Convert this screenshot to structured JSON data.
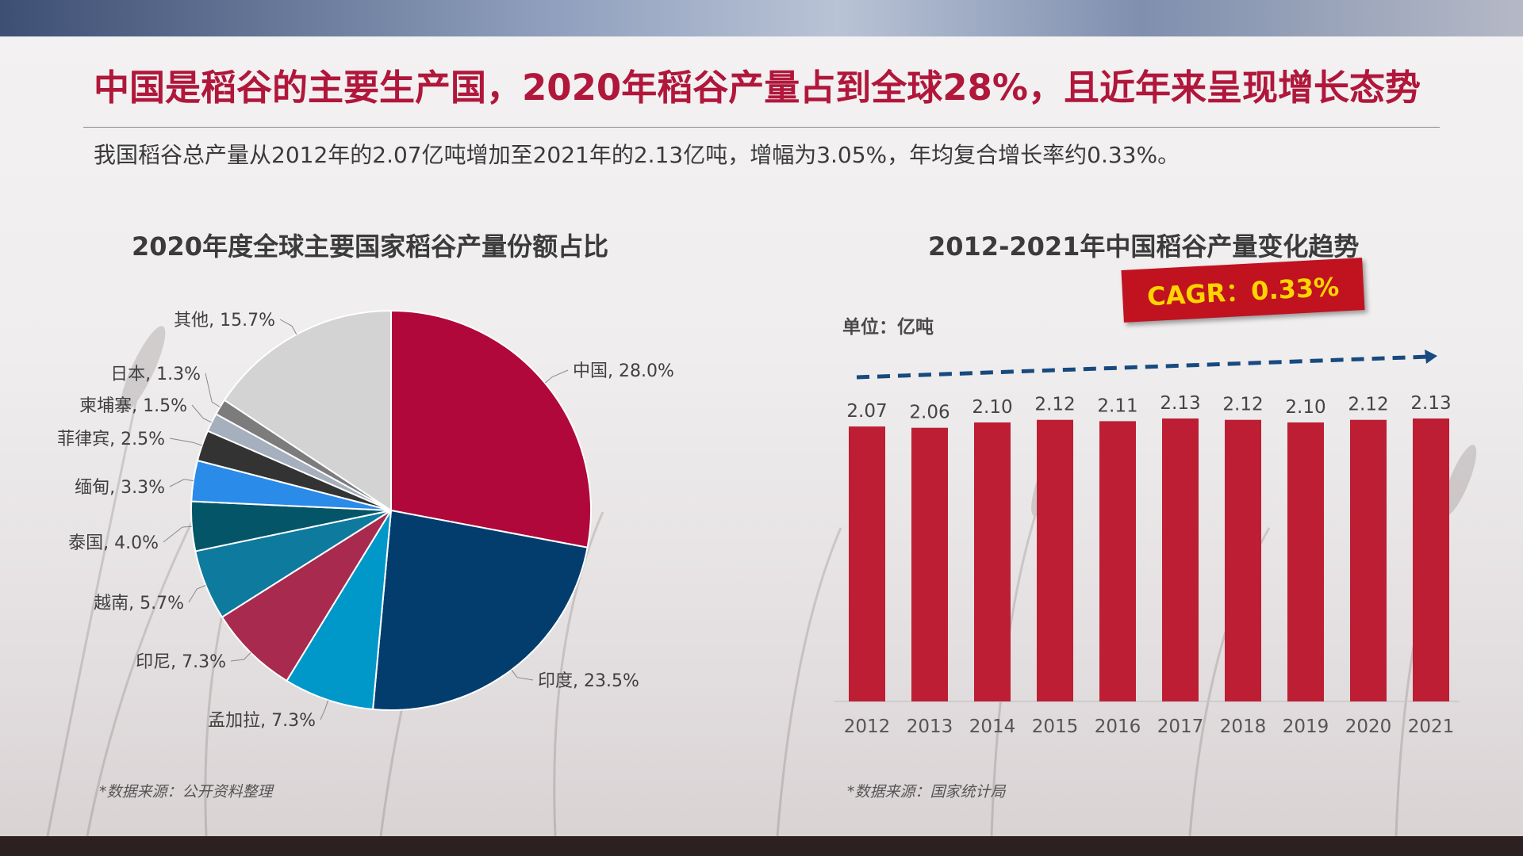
{
  "headline": "中国是稻谷的主要生产国，2020年稻谷产量占到全球28%，且近年来呈现增长态势",
  "subtext": "我国稻谷总产量从2012年的2.07亿吨增加至2021年的2.13亿吨，增幅为3.05%，年均复合增长率约0.33%。",
  "pie_title": "2020年度全球主要国家稻谷产量份额占比",
  "bar_title": "2012-2021年中国稻谷产量变化趋势",
  "unit_label": "单位：亿吨",
  "cagr_label": "CAGR：0.33%",
  "source_left": "*数据来源：公开资料整理",
  "source_right": "*数据来源：国家统计局",
  "chart_data": [
    {
      "type": "pie",
      "title": "2020年度全球主要国家稻谷产量份额占比",
      "categories": [
        "中国",
        "印度",
        "孟加拉",
        "印尼",
        "越南",
        "泰国",
        "缅甸",
        "菲律宾",
        "柬埔寨",
        "日本",
        "其他"
      ],
      "values": [
        28.0,
        23.5,
        7.3,
        7.3,
        5.7,
        4.0,
        3.3,
        2.5,
        1.5,
        1.3,
        15.7
      ],
      "data_labels": [
        "中国, 28.0%",
        "印度, 23.5%",
        "孟加拉, 7.3%",
        "印尼, 7.3%",
        "越南, 5.7%",
        "泰国, 4.0%",
        "缅甸, 3.3%",
        "菲律宾, 2.5%",
        "柬埔寨, 1.5%",
        "日本, 1.3%",
        "其他, 15.7%"
      ],
      "colors": [
        "#b0083a",
        "#033d6e",
        "#0097c9",
        "#a82b4f",
        "#0e7a9e",
        "#035567",
        "#2b8be8",
        "#333333",
        "#a6afbd",
        "#7c7c7c",
        "#d3d3d3"
      ]
    },
    {
      "type": "bar",
      "title": "2012-2021年中国稻谷产量变化趋势",
      "categories": [
        "2012",
        "2013",
        "2014",
        "2015",
        "2016",
        "2017",
        "2018",
        "2019",
        "2020",
        "2021"
      ],
      "values": [
        2.07,
        2.06,
        2.1,
        2.12,
        2.11,
        2.13,
        2.12,
        2.1,
        2.12,
        2.13
      ],
      "data_labels": [
        "2.07",
        "2.06",
        "2.10",
        "2.12",
        "2.11",
        "2.13",
        "2.12",
        "2.10",
        "2.12",
        "2.13"
      ],
      "ylabel": "单位：亿吨",
      "annotation": "CAGR：0.33%",
      "color": "#bd1e34",
      "ylim": [
        0,
        2.13
      ],
      "grid": false
    }
  ]
}
